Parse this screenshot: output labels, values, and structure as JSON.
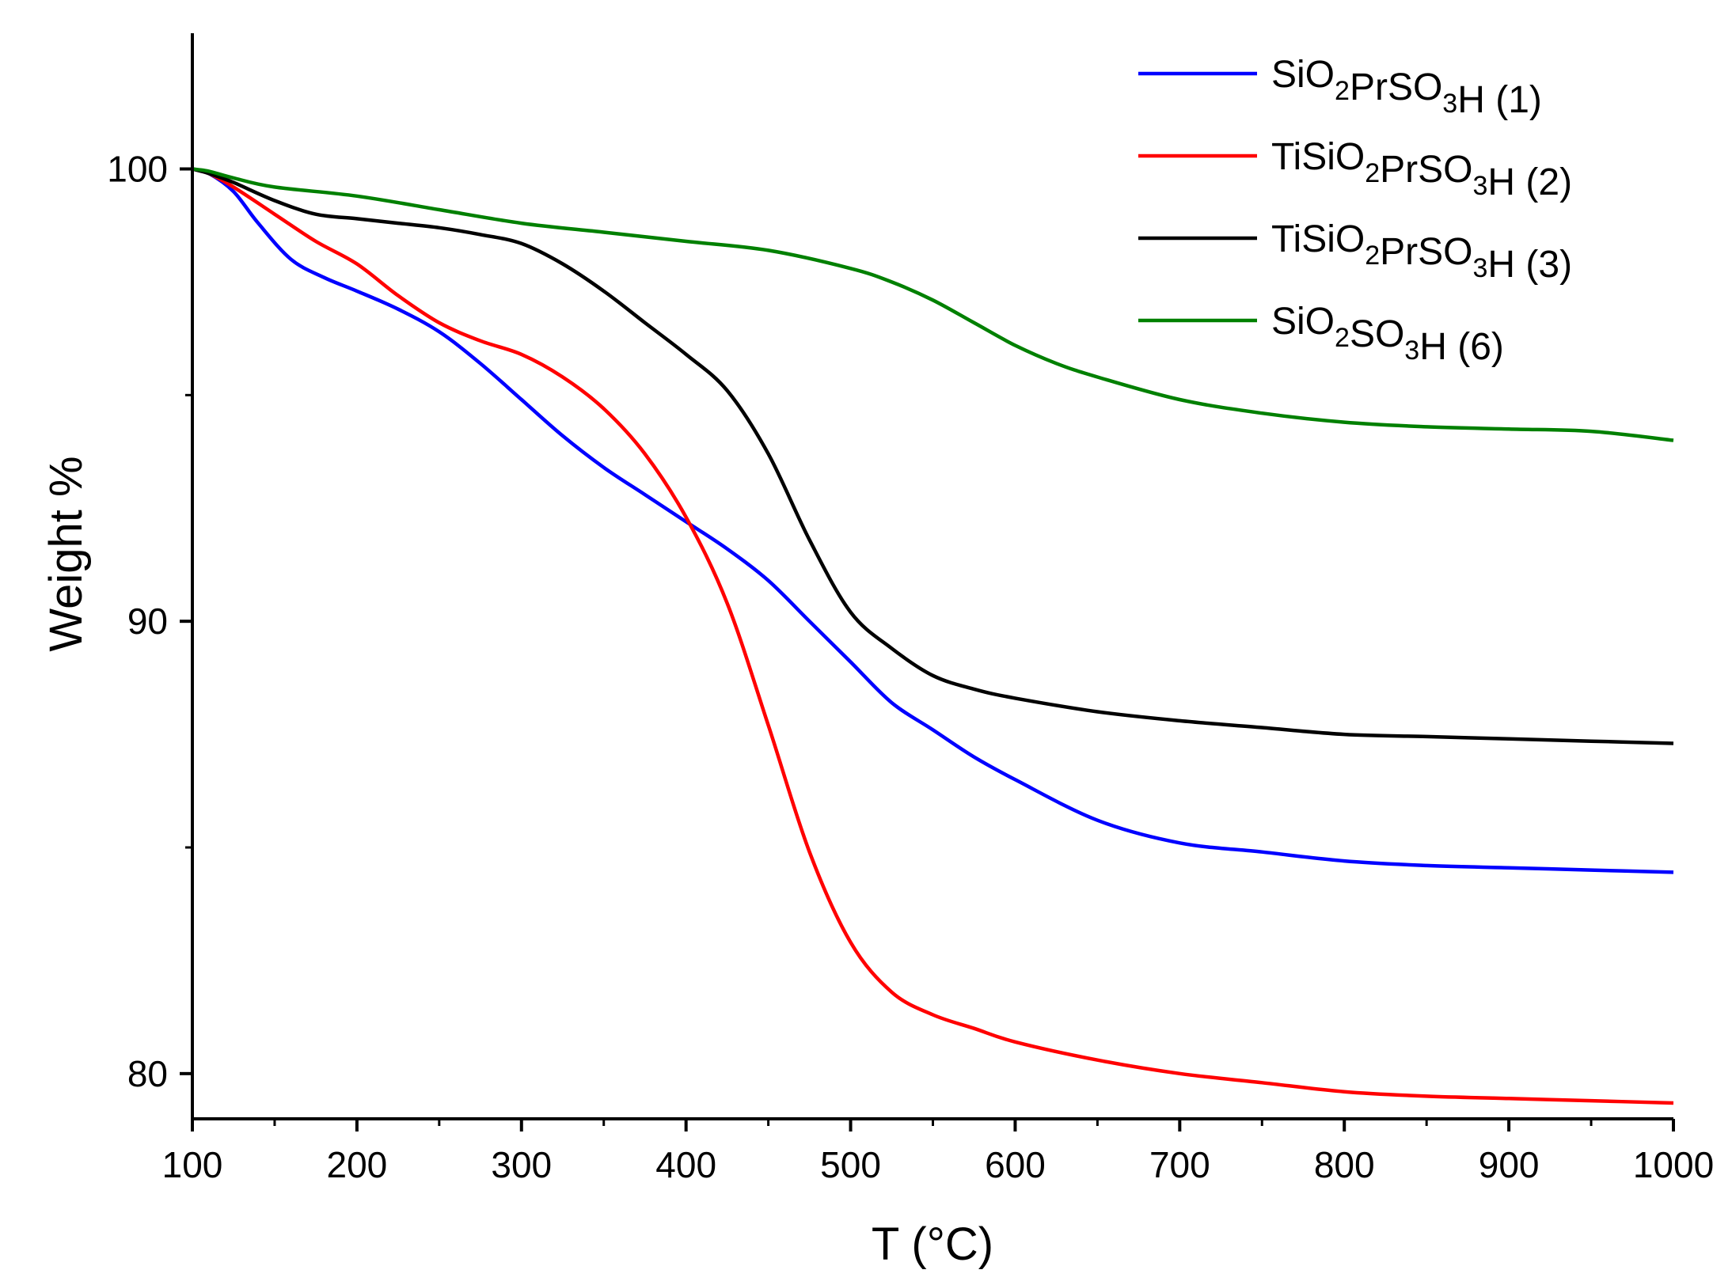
{
  "chart_data": {
    "type": "line",
    "title": "",
    "xlabel": "T (°C)",
    "ylabel": "Weight %",
    "xlim": [
      100,
      1000
    ],
    "ylim": [
      79,
      103
    ],
    "x_ticks": [
      100,
      200,
      300,
      400,
      500,
      600,
      700,
      800,
      900,
      1000
    ],
    "x_tick_labels": [
      "100",
      "200",
      "300",
      "400",
      "500",
      "600",
      "700",
      "800",
      "900",
      "1000"
    ],
    "y_ticks": [
      80,
      90,
      100
    ],
    "y_tick_labels": [
      "80",
      "90",
      "100"
    ],
    "grid": false,
    "legend_position": "top-right",
    "series": [
      {
        "name": "SiO2PrSO3H (1)",
        "legend": [
          {
            "t": "SiO"
          },
          {
            "t": "2",
            "sub": true
          },
          {
            "t": "PrSO"
          },
          {
            "t": "3",
            "sub": true
          },
          {
            "t": "H (1)"
          }
        ],
        "color": "#0000ff",
        "x": [
          100,
          110,
          125,
          140,
          160,
          180,
          200,
          225,
          250,
          275,
          300,
          325,
          350,
          375,
          400,
          425,
          450,
          475,
          500,
          525,
          550,
          575,
          600,
          650,
          700,
          750,
          800,
          850,
          900,
          950,
          1000
        ],
        "y": [
          100,
          99.9,
          99.5,
          98.8,
          98.0,
          97.6,
          97.3,
          96.9,
          96.4,
          95.7,
          94.9,
          94.1,
          93.4,
          92.8,
          92.2,
          91.6,
          90.9,
          90.0,
          89.1,
          88.2,
          87.6,
          87.0,
          86.5,
          85.6,
          85.1,
          84.9,
          84.7,
          84.6,
          84.55,
          84.5,
          84.45
        ]
      },
      {
        "name": "TiSiO2PrSO3H (2)",
        "legend": [
          {
            "t": "TiSiO"
          },
          {
            "t": "2",
            "sub": true
          },
          {
            "t": "PrSO"
          },
          {
            "t": "3",
            "sub": true
          },
          {
            "t": "H (2)"
          }
        ],
        "color": "#ff0000",
        "x": [
          100,
          110,
          125,
          150,
          175,
          200,
          225,
          250,
          275,
          300,
          325,
          350,
          375,
          400,
          425,
          450,
          475,
          500,
          525,
          550,
          575,
          600,
          650,
          700,
          750,
          800,
          850,
          900,
          950,
          1000
        ],
        "y": [
          100,
          99.9,
          99.6,
          99.0,
          98.4,
          97.9,
          97.2,
          96.6,
          96.2,
          95.9,
          95.4,
          94.7,
          93.7,
          92.3,
          90.4,
          87.7,
          84.9,
          82.9,
          81.8,
          81.3,
          81.0,
          80.7,
          80.3,
          80.0,
          79.8,
          79.6,
          79.5,
          79.45,
          79.4,
          79.35
        ]
      },
      {
        "name": "TiSiO2PrSO3H (3)",
        "legend": [
          {
            "t": "TiSiO"
          },
          {
            "t": "2",
            "sub": true
          },
          {
            "t": "PrSO"
          },
          {
            "t": "3",
            "sub": true
          },
          {
            "t": "H (3)"
          }
        ],
        "color": "#000000",
        "x": [
          100,
          110,
          125,
          150,
          175,
          200,
          225,
          250,
          275,
          300,
          325,
          350,
          375,
          400,
          425,
          450,
          475,
          500,
          525,
          550,
          575,
          600,
          650,
          700,
          750,
          800,
          850,
          900,
          950,
          1000
        ],
        "y": [
          100,
          99.9,
          99.7,
          99.3,
          99.0,
          98.9,
          98.8,
          98.7,
          98.55,
          98.35,
          97.9,
          97.3,
          96.6,
          95.9,
          95.1,
          93.7,
          91.8,
          90.2,
          89.4,
          88.8,
          88.5,
          88.3,
          88.0,
          87.8,
          87.65,
          87.5,
          87.45,
          87.4,
          87.35,
          87.3
        ]
      },
      {
        "name": "SiO2SO3H (6)",
        "legend": [
          {
            "t": "SiO"
          },
          {
            "t": "2",
            "sub": true
          },
          {
            "t": "SO"
          },
          {
            "t": "3",
            "sub": true
          },
          {
            "t": "H (6)"
          }
        ],
        "color": "#008000",
        "x": [
          100,
          110,
          125,
          150,
          200,
          250,
          300,
          350,
          400,
          450,
          500,
          525,
          550,
          575,
          600,
          625,
          650,
          700,
          750,
          800,
          850,
          900,
          950,
          1000
        ],
        "y": [
          100,
          99.95,
          99.8,
          99.6,
          99.4,
          99.1,
          98.8,
          98.6,
          98.4,
          98.2,
          97.8,
          97.5,
          97.1,
          96.6,
          96.1,
          95.7,
          95.4,
          94.9,
          94.6,
          94.4,
          94.3,
          94.25,
          94.2,
          94.0
        ]
      }
    ]
  }
}
